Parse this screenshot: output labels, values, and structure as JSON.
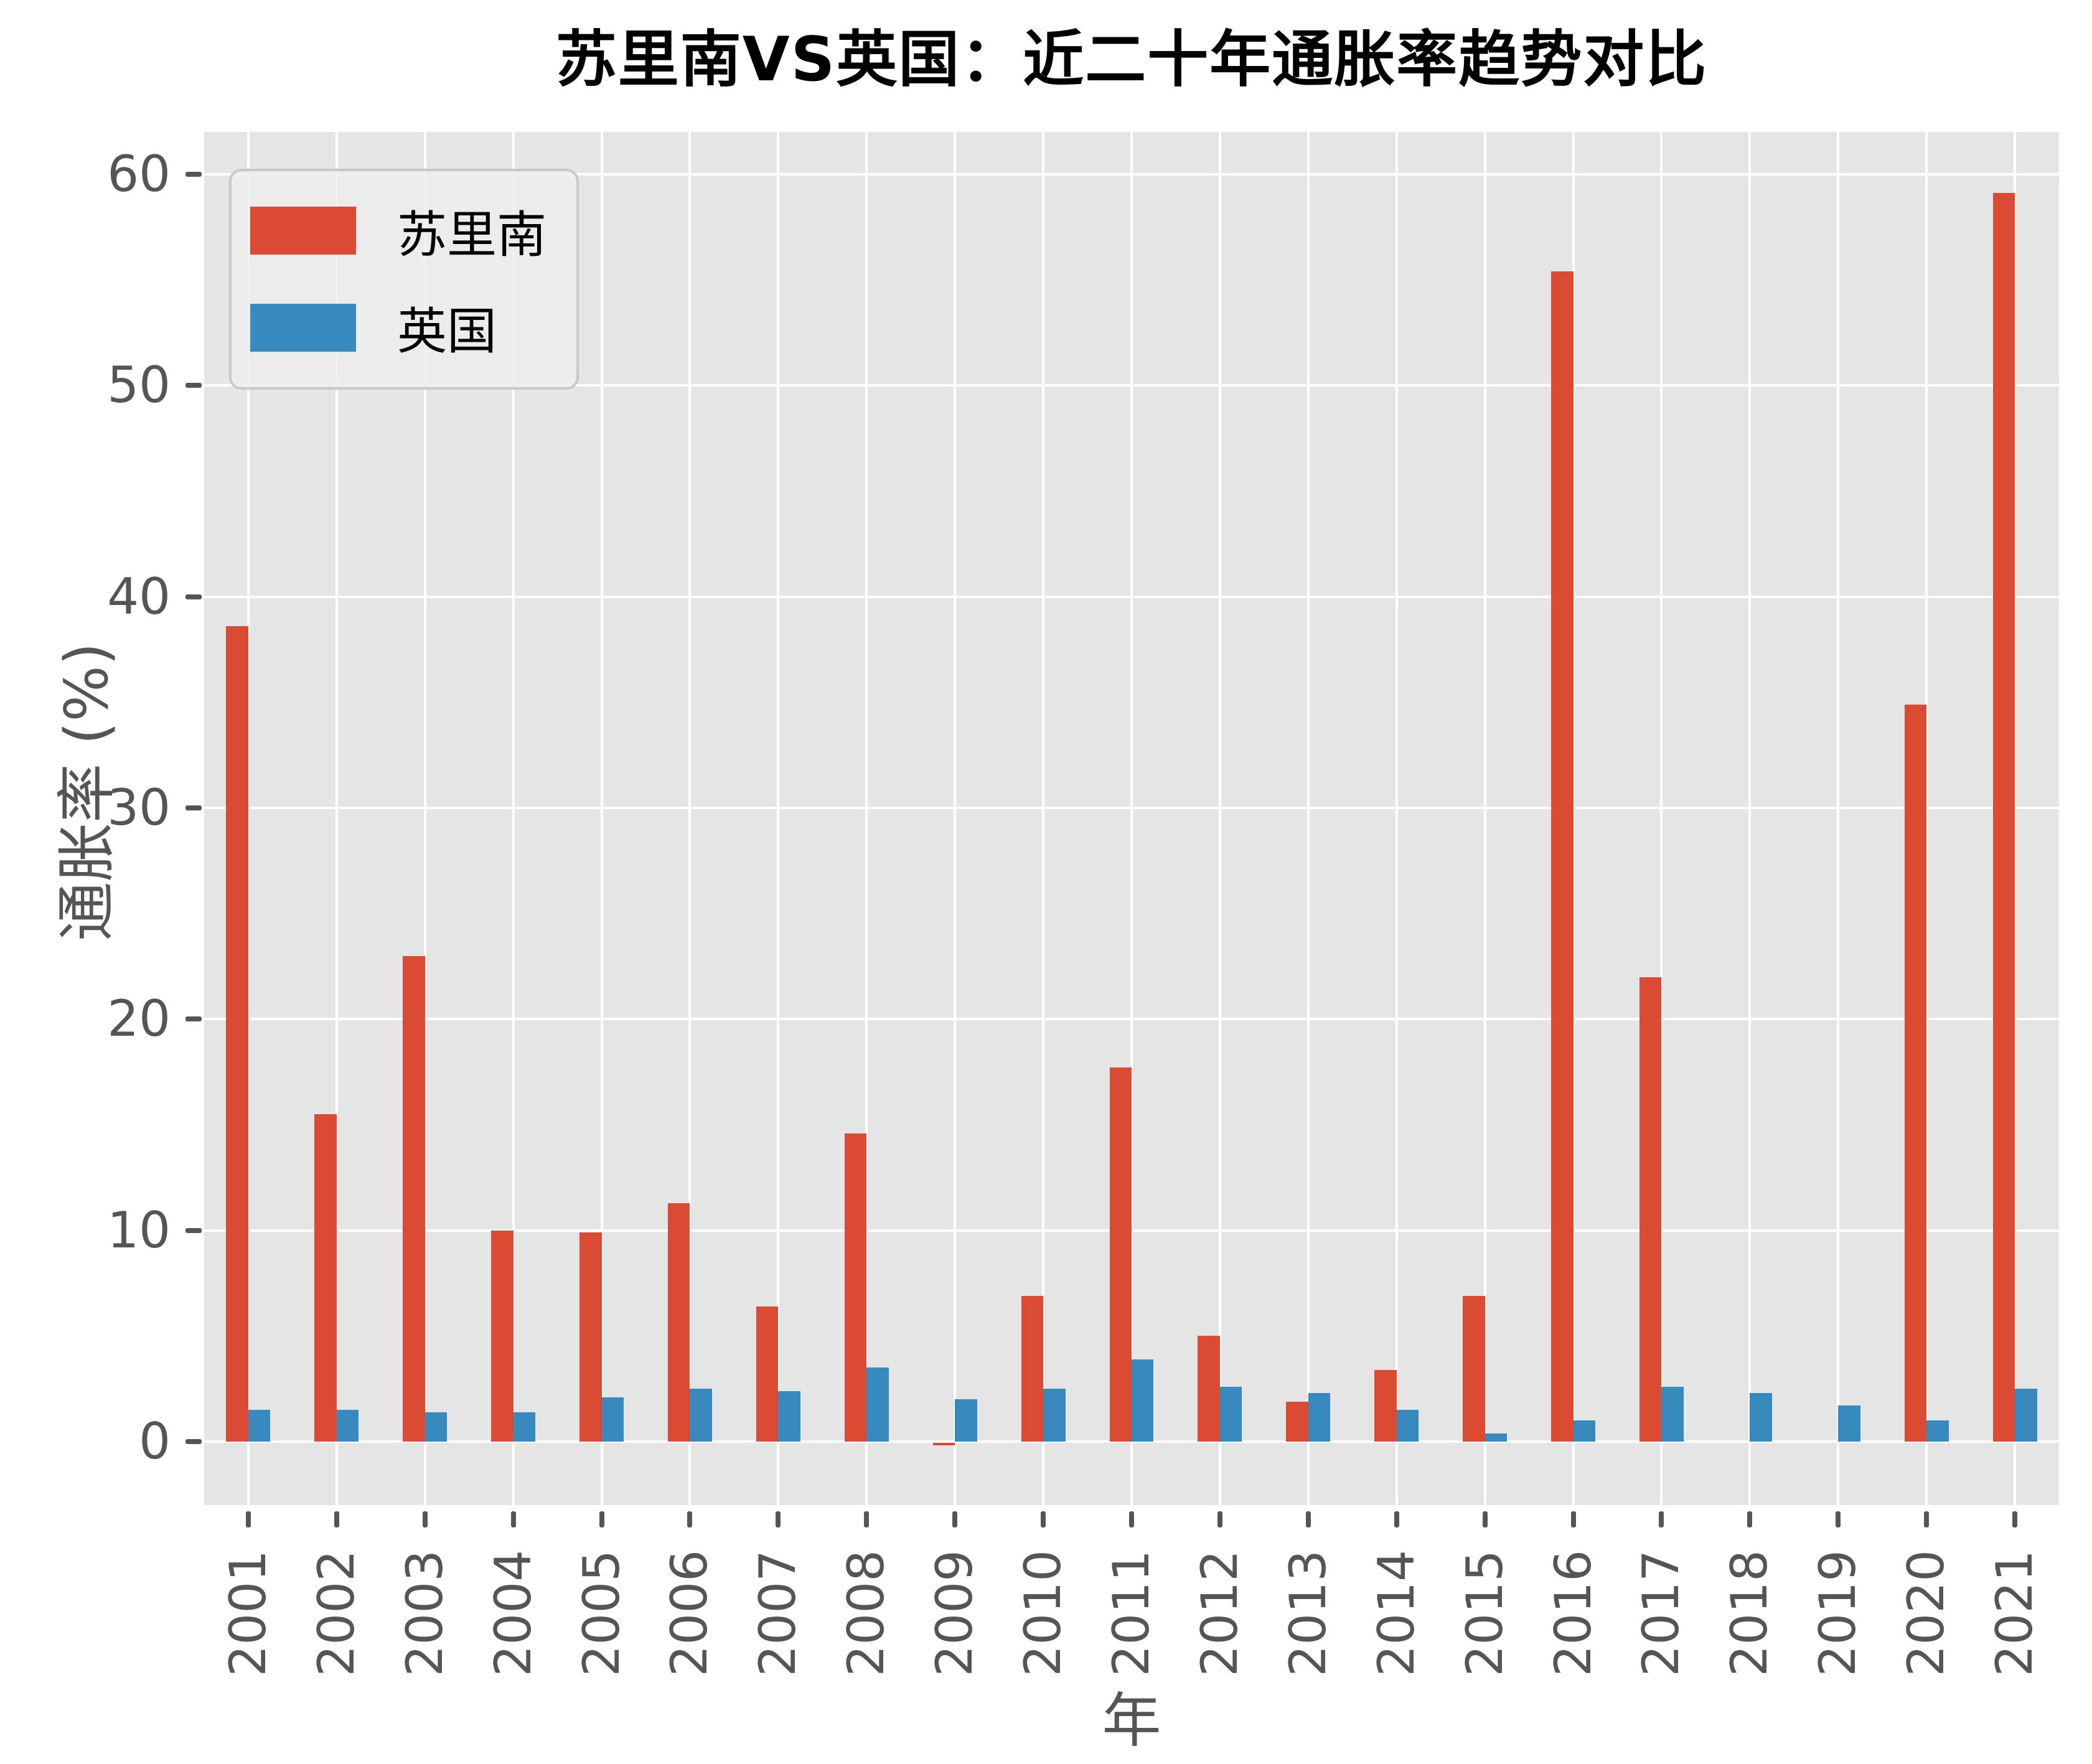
{
  "chart_data": {
    "type": "bar",
    "title": "苏里南VS英国：近二十年通胀率趋势对比",
    "xlabel": "年",
    "ylabel": "通胀率 (%)",
    "categories": [
      "2001",
      "2002",
      "2003",
      "2004",
      "2005",
      "2006",
      "2007",
      "2008",
      "2009",
      "2010",
      "2011",
      "2012",
      "2013",
      "2014",
      "2015",
      "2016",
      "2017",
      "2018",
      "2019",
      "2020",
      "2021"
    ],
    "series": [
      {
        "name": "苏里南",
        "color": "#db4b34",
        "values": [
          38.6,
          15.5,
          23.0,
          10.0,
          9.9,
          11.3,
          6.4,
          14.6,
          -0.1,
          6.9,
          17.7,
          5.0,
          1.9,
          3.4,
          6.9,
          55.4,
          22.0,
          null,
          null,
          34.9,
          59.1
        ]
      },
      {
        "name": "英国",
        "color": "#3889bd",
        "values": [
          1.5,
          1.5,
          1.4,
          1.4,
          2.1,
          2.5,
          2.4,
          3.5,
          2.0,
          2.5,
          3.9,
          2.6,
          2.3,
          1.5,
          0.4,
          1.0,
          2.6,
          2.3,
          1.7,
          1.0,
          2.5
        ]
      }
    ],
    "ylim": [
      -3,
      62
    ],
    "yticks": [
      0,
      10,
      20,
      30,
      40,
      50,
      60
    ],
    "grid": true,
    "legend_position": "upper left",
    "plot_bg_color": "#e5e5e5",
    "grid_color": "#ffffff",
    "tick_color": "#555555"
  }
}
